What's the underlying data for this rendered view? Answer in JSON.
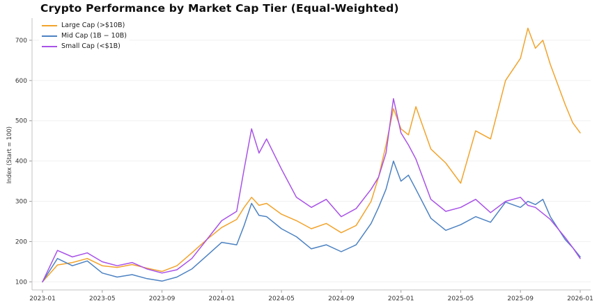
{
  "chart_data": {
    "type": "line",
    "title": "Crypto Performance by Market Cap Tier (Equal-Weighted)",
    "xlabel": "",
    "ylabel": "Index (Start = 100)",
    "legend_position": "upper left",
    "grid": "horizontal-faint",
    "x_unit": "months since 2023-01",
    "xlim": [
      -0.7,
      36.7
    ],
    "ylim": [
      80,
      755
    ],
    "yticks": [
      100,
      200,
      300,
      400,
      500,
      600,
      700
    ],
    "xticks": [
      {
        "x": 0,
        "label": "2023-01"
      },
      {
        "x": 4,
        "label": "2023-05"
      },
      {
        "x": 8,
        "label": "2023-09"
      },
      {
        "x": 12,
        "label": "2024-01"
      },
      {
        "x": 16,
        "label": "2024-05"
      },
      {
        "x": 20,
        "label": "2024-09"
      },
      {
        "x": 24,
        "label": "2025-01"
      },
      {
        "x": 28,
        "label": "2025-05"
      },
      {
        "x": 32,
        "label": "2025-09"
      },
      {
        "x": 36,
        "label": "2026-01"
      }
    ],
    "x": [
      0,
      1,
      2,
      3,
      4,
      5,
      6,
      7,
      8,
      9,
      10,
      11,
      12,
      13,
      13.5,
      14,
      14.5,
      15,
      16,
      17,
      18,
      19,
      20,
      21,
      22,
      22.5,
      23,
      23.5,
      24,
      24.5,
      25,
      26,
      27,
      28,
      29,
      30,
      31,
      32,
      32.5,
      33,
      33.5,
      34,
      35,
      35.5,
      36
    ],
    "series": [
      {
        "name": "Large Cap (>$10B)",
        "color": "#f2a32b",
        "values": [
          100,
          142,
          148,
          158,
          140,
          136,
          143,
          134,
          126,
          140,
          172,
          205,
          235,
          255,
          285,
          310,
          290,
          295,
          268,
          252,
          232,
          245,
          222,
          240,
          300,
          360,
          440,
          530,
          480,
          465,
          535,
          430,
          395,
          345,
          475,
          455,
          600,
          655,
          730,
          680,
          700,
          640,
          540,
          495,
          470
        ]
      },
      {
        "name": "Mid Cap (1B − 10B)",
        "color": "#4c82c2",
        "values": [
          100,
          158,
          140,
          152,
          122,
          112,
          118,
          108,
          102,
          112,
          132,
          165,
          198,
          192,
          240,
          295,
          265,
          262,
          232,
          212,
          182,
          192,
          175,
          192,
          245,
          285,
          330,
          400,
          350,
          365,
          330,
          258,
          228,
          242,
          262,
          248,
          298,
          285,
          300,
          292,
          305,
          262,
          205,
          185,
          162
        ]
      },
      {
        "name": "Small Cap (<$1B)",
        "color": "#a852e8",
        "values": [
          100,
          178,
          162,
          172,
          150,
          140,
          148,
          132,
          122,
          130,
          158,
          205,
          252,
          275,
          380,
          480,
          420,
          455,
          380,
          310,
          285,
          305,
          262,
          282,
          330,
          360,
          420,
          555,
          470,
          440,
          405,
          305,
          275,
          285,
          305,
          272,
          300,
          310,
          290,
          285,
          270,
          255,
          210,
          185,
          158
        ]
      }
    ]
  }
}
